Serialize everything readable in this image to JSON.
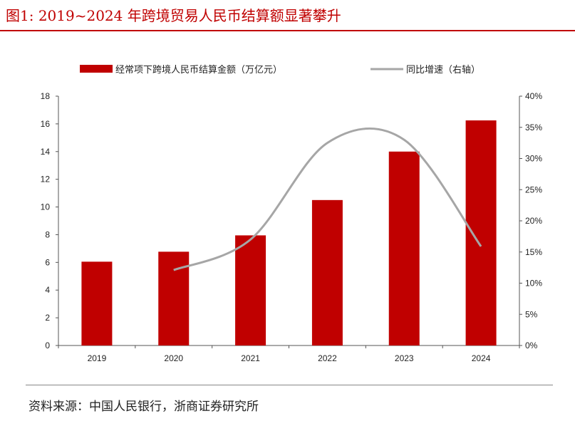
{
  "figure": {
    "title": "图1:   2019~2024 年跨境贸易人民币结算额显著攀升",
    "source": "资料来源：中国人民银行，浙商证券研究所"
  },
  "chart_data": {
    "type": "bar+line",
    "categories": [
      "2019",
      "2020",
      "2021",
      "2022",
      "2023",
      "2024"
    ],
    "series": [
      {
        "name": "经常项下跨境人民币结算金额（万亿元）",
        "type": "bar",
        "axis": "left",
        "color": "#c00000",
        "values": [
          6.05,
          6.77,
          7.95,
          10.5,
          14.0,
          16.25
        ]
      },
      {
        "name": "同比增速（右轴）",
        "type": "line",
        "axis": "right",
        "color": "#a6a6a6",
        "smooth": true,
        "values": [
          null,
          12.1,
          17.0,
          32.5,
          33.0,
          15.9
        ]
      }
    ],
    "ylim_left": [
      0,
      18
    ],
    "yticks_left": [
      "0",
      "2",
      "4",
      "6",
      "8",
      "10",
      "12",
      "14",
      "16",
      "18"
    ],
    "ylim_right": [
      0,
      40
    ],
    "yticks_right": [
      "0%",
      "5%",
      "10%",
      "15%",
      "20%",
      "25%",
      "30%",
      "35%",
      "40%"
    ],
    "legend": "top",
    "grid": false
  }
}
